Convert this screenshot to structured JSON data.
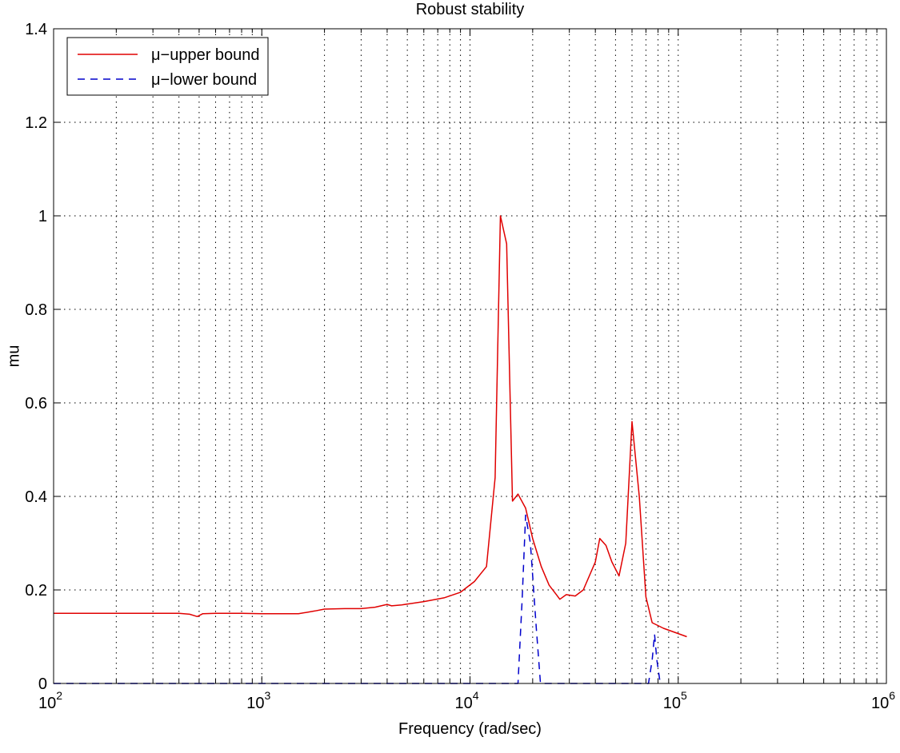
{
  "chart_data": {
    "type": "line",
    "title": "Robust stability",
    "xlabel": "Frequency (rad/sec)",
    "ylabel": "mu",
    "x_scale": "log",
    "xlim": [
      100,
      1000000
    ],
    "ylim": [
      0,
      1.4
    ],
    "grid": true,
    "legend_position": "top-left",
    "x_ticks": [
      {
        "value": 100,
        "base": "10",
        "exp": "2"
      },
      {
        "value": 1000,
        "base": "10",
        "exp": "3"
      },
      {
        "value": 10000,
        "base": "10",
        "exp": "4"
      },
      {
        "value": 100000,
        "base": "10",
        "exp": "5"
      },
      {
        "value": 1000000,
        "base": "10",
        "exp": "6"
      }
    ],
    "y_ticks": [
      {
        "value": 0,
        "label": "0"
      },
      {
        "value": 0.2,
        "label": "0.2"
      },
      {
        "value": 0.4,
        "label": "0.4"
      },
      {
        "value": 0.6,
        "label": "0.6"
      },
      {
        "value": 0.8,
        "label": "0.8"
      },
      {
        "value": 1,
        "label": "1"
      },
      {
        "value": 1.2,
        "label": "1.2"
      },
      {
        "value": 1.4,
        "label": "1.4"
      }
    ],
    "series": [
      {
        "name": "μ−upper bound",
        "color": "#e00000",
        "style": "solid",
        "points": [
          [
            100,
            0.15
          ],
          [
            200,
            0.15
          ],
          [
            300,
            0.15
          ],
          [
            400,
            0.15
          ],
          [
            450,
            0.148
          ],
          [
            490,
            0.143
          ],
          [
            520,
            0.149
          ],
          [
            600,
            0.15
          ],
          [
            800,
            0.15
          ],
          [
            1000,
            0.149
          ],
          [
            1500,
            0.149
          ],
          [
            1800,
            0.155
          ],
          [
            2000,
            0.159
          ],
          [
            2500,
            0.16
          ],
          [
            3000,
            0.16
          ],
          [
            3500,
            0.163
          ],
          [
            4000,
            0.169
          ],
          [
            4200,
            0.166
          ],
          [
            4700,
            0.168
          ],
          [
            6000,
            0.175
          ],
          [
            7500,
            0.183
          ],
          [
            9000,
            0.195
          ],
          [
            10500,
            0.218
          ],
          [
            12000,
            0.25
          ],
          [
            13200,
            0.44
          ],
          [
            14000,
            1.0
          ],
          [
            15000,
            0.94
          ],
          [
            16000,
            0.39
          ],
          [
            17000,
            0.405
          ],
          [
            18500,
            0.375
          ],
          [
            20000,
            0.31
          ],
          [
            22000,
            0.25
          ],
          [
            24000,
            0.21
          ],
          [
            26000,
            0.19
          ],
          [
            27000,
            0.18
          ],
          [
            29000,
            0.19
          ],
          [
            32000,
            0.187
          ],
          [
            35000,
            0.2
          ],
          [
            40000,
            0.26
          ],
          [
            42000,
            0.31
          ],
          [
            45000,
            0.295
          ],
          [
            48000,
            0.26
          ],
          [
            52000,
            0.23
          ],
          [
            56000,
            0.3
          ],
          [
            60000,
            0.56
          ],
          [
            65000,
            0.4
          ],
          [
            70000,
            0.185
          ],
          [
            75000,
            0.13
          ],
          [
            85000,
            0.118
          ],
          [
            110000,
            0.1
          ]
        ]
      },
      {
        "name": "μ−lower bound",
        "color": "#0000cc",
        "style": "dashed",
        "points": [
          [
            100,
            0
          ],
          [
            17000,
            0
          ],
          [
            17800,
            0.18
          ],
          [
            18500,
            0.36
          ],
          [
            19500,
            0.3
          ],
          [
            20800,
            0.12
          ],
          [
            21800,
            0
          ],
          [
            72000,
            0
          ],
          [
            75000,
            0.05
          ],
          [
            77000,
            0.105
          ],
          [
            79000,
            0.05
          ],
          [
            82000,
            0
          ]
        ]
      }
    ]
  }
}
